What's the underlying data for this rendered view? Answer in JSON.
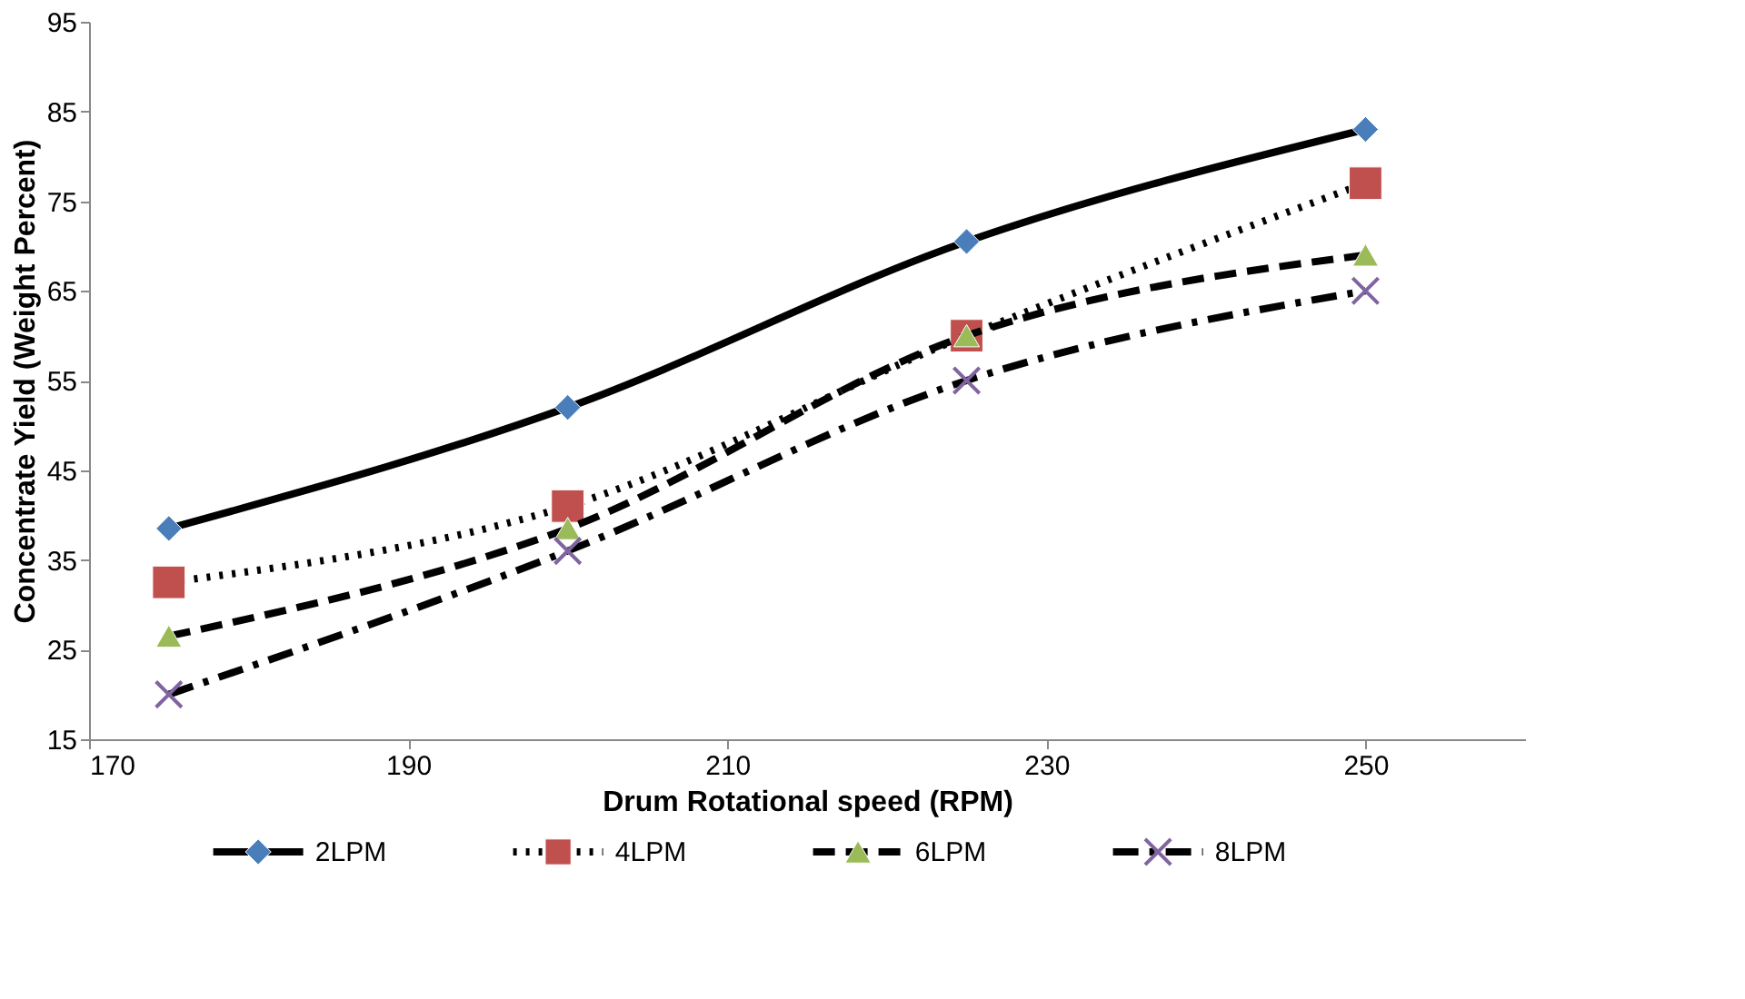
{
  "chart_data": {
    "type": "line",
    "xlabel": "Drum Rotational speed (RPM)",
    "ylabel": "Concentrate Yield (Weight Percent)",
    "x": [
      175,
      200,
      225,
      250
    ],
    "series": [
      {
        "name": "2LPM",
        "color": "#4a7ebb",
        "marker": "diamond",
        "line_style": "solid",
        "values": [
          38.5,
          52,
          70.5,
          83
        ]
      },
      {
        "name": "4LPM",
        "color": "#c0504d",
        "marker": "square",
        "line_style": "dotted",
        "values": [
          32.5,
          41,
          60,
          77
        ]
      },
      {
        "name": "6LPM",
        "color": "#9bbb59",
        "marker": "triangle",
        "line_style": "dashed",
        "values": [
          26.5,
          38.5,
          60,
          69
        ]
      },
      {
        "name": "8LPM",
        "color": "#8064a2",
        "marker": "cross",
        "line_style": "dashdot",
        "values": [
          20,
          36,
          55,
          65
        ]
      }
    ],
    "xlim": [
      170,
      260
    ],
    "xticks": [
      170,
      190,
      210,
      230,
      250
    ],
    "ylim": [
      15,
      95
    ],
    "yticks": [
      15,
      25,
      35,
      45,
      55,
      65,
      75,
      85,
      95
    ],
    "grid": false,
    "legend": "bottom"
  }
}
